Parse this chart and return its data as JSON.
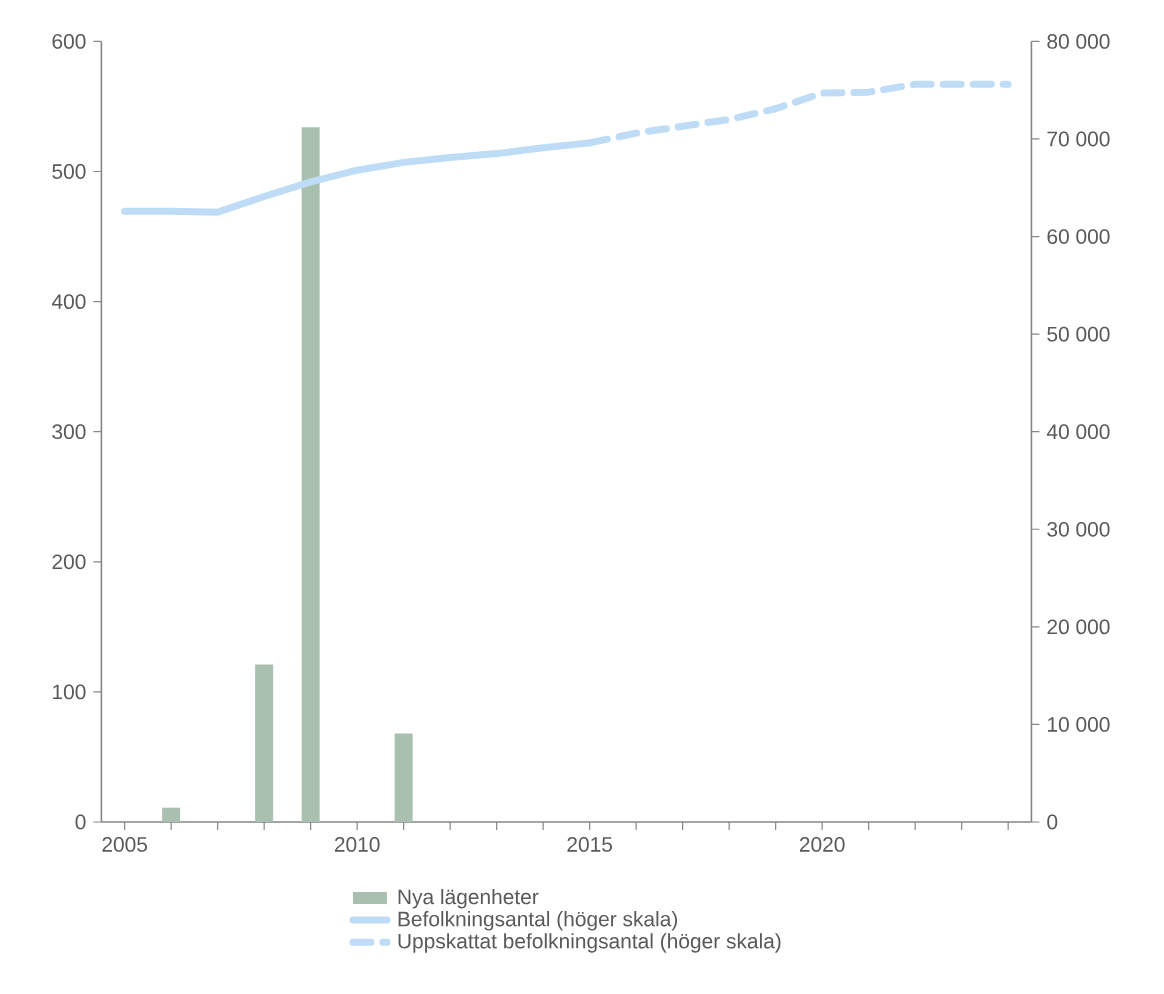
{
  "chart_data": {
    "type": "bar",
    "xlim": [
      2004.5,
      2024.5
    ],
    "xticks": [
      2005,
      {
        "value": 2006,
        "label": null
      },
      {
        "value": 2007,
        "label": null
      },
      {
        "value": 2008,
        "label": null
      },
      {
        "value": 2009,
        "label": null
      },
      2010,
      {
        "value": 2011,
        "label": null
      },
      {
        "value": 2012,
        "label": null
      },
      {
        "value": 2013,
        "label": null
      },
      {
        "value": 2014,
        "label": null
      },
      2015,
      {
        "value": 2016,
        "label": null
      },
      {
        "value": 2017,
        "label": null
      },
      {
        "value": 2018,
        "label": null
      },
      {
        "value": 2019,
        "label": null
      },
      2020,
      {
        "value": 2021,
        "label": null
      },
      {
        "value": 2022,
        "label": null
      },
      {
        "value": 2023,
        "label": null
      },
      {
        "value": 2024,
        "label": null
      }
    ],
    "ylim": [
      0,
      600
    ],
    "yticks": [
      0,
      100,
      200,
      300,
      400,
      500,
      600
    ],
    "y2lim": [
      0,
      80000
    ],
    "y2ticks": [
      0,
      {
        "value": 10000,
        "label": "10 000"
      },
      {
        "value": 20000,
        "label": "20 000"
      },
      {
        "value": 30000,
        "label": "30 000"
      },
      {
        "value": 40000,
        "label": "40 000"
      },
      {
        "value": 50000,
        "label": "50 000"
      },
      {
        "value": 60000,
        "label": "60 000"
      },
      {
        "value": 70000,
        "label": "70 000"
      },
      {
        "value": 80000,
        "label": "80 000"
      }
    ],
    "legend": "bottom",
    "series": [
      {
        "name": "Nya lägenheter",
        "color": "#a9c0b0",
        "x": [
          2006,
          2008,
          2009,
          2011
        ],
        "values": [
          11,
          121,
          534,
          68
        ]
      },
      {
        "name": "Befolkningsantal (höger skala)",
        "type": "line",
        "axis": "y2",
        "line_style": "solid",
        "color": "#bfdcf7",
        "x": [
          2005,
          2006,
          2007,
          2008,
          2009,
          2010,
          2011,
          2012,
          2013,
          2014,
          2015
        ],
        "values": [
          62600,
          62600,
          62500,
          64100,
          65600,
          66800,
          67600,
          68100,
          68500,
          69100,
          69600
        ]
      },
      {
        "name": "Uppskattat befolkningsantal (höger skala)",
        "type": "line",
        "axis": "y2",
        "line_style": "dashed",
        "color": "#bfdcf7",
        "x": [
          2015,
          2016,
          2017,
          2018,
          2019,
          2020,
          2021,
          2022,
          2023,
          2024
        ],
        "values": [
          69600,
          70600,
          71300,
          72000,
          73100,
          74700,
          74800,
          75600,
          75600,
          75600
        ]
      }
    ]
  }
}
